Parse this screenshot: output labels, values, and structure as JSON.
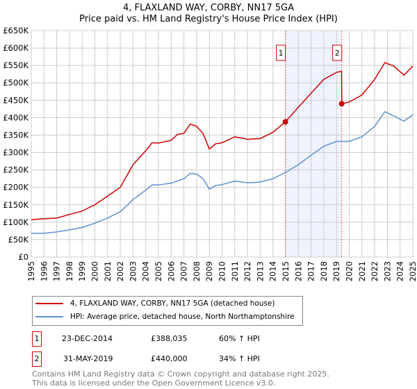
{
  "title": "4, FLAXLAND WAY, CORBY, NN17 5GA",
  "subtitle": "Price paid vs. HM Land Registry's House Price Index (HPI)",
  "chart_data": {
    "type": "line",
    "title": "4, FLAXLAND WAY, CORBY, NN17 5GA",
    "subtitle": "Price paid vs. HM Land Registry's House Price Index (HPI)",
    "xlim": [
      1995,
      2025
    ],
    "ylim": [
      0,
      650000
    ],
    "x_ticks": [
      "1995",
      "1996",
      "1997",
      "1998",
      "1999",
      "2000",
      "2001",
      "2002",
      "2003",
      "2004",
      "2005",
      "2006",
      "2007",
      "2008",
      "2009",
      "2010",
      "2011",
      "2012",
      "2013",
      "2014",
      "2015",
      "2016",
      "2017",
      "2018",
      "2019",
      "2020",
      "2021",
      "2022",
      "2023",
      "2024",
      "2025"
    ],
    "y_ticks": [
      {
        "v": 0,
        "l": "£0"
      },
      {
        "v": 50000,
        "l": "£50K"
      },
      {
        "v": 100000,
        "l": "£100K"
      },
      {
        "v": 150000,
        "l": "£150K"
      },
      {
        "v": 200000,
        "l": "£200K"
      },
      {
        "v": 250000,
        "l": "£250K"
      },
      {
        "v": 300000,
        "l": "£300K"
      },
      {
        "v": 350000,
        "l": "£350K"
      },
      {
        "v": 400000,
        "l": "£400K"
      },
      {
        "v": 450000,
        "l": "£450K"
      },
      {
        "v": 500000,
        "l": "£500K"
      },
      {
        "v": 550000,
        "l": "£550K"
      },
      {
        "v": 600000,
        "l": "£600K"
      },
      {
        "v": 650000,
        "l": "£650K"
      }
    ],
    "grid": true,
    "series": [
      {
        "name": "4, FLAXLAND WAY, CORBY, NN17 5GA (detached house)",
        "color": "#cc0000",
        "x": [
          1995,
          1996,
          1997,
          1998,
          1999,
          2000,
          2001,
          2002,
          2003,
          2004,
          2004.5,
          2005,
          2006,
          2006.5,
          2007,
          2007.5,
          2008,
          2008.5,
          2009,
          2009.5,
          2010,
          2011,
          2012,
          2013,
          2014,
          2014.98,
          2016,
          2017,
          2018,
          2019,
          2019.4,
          2019.42,
          2020,
          2021,
          2022,
          2022.8,
          2023.5,
          2024.3,
          2025
        ],
        "y": [
          107000,
          110000,
          112000,
          122000,
          132000,
          150000,
          175000,
          200000,
          265000,
          305000,
          328000,
          327000,
          335000,
          352000,
          355000,
          382000,
          375000,
          355000,
          310000,
          325000,
          328000,
          345000,
          338000,
          340000,
          358000,
          388035,
          430000,
          470000,
          510000,
          530000,
          533000,
          440000,
          445000,
          465000,
          510000,
          558000,
          548000,
          522000,
          548000
        ]
      },
      {
        "name": "HPI: Average price, detached house, North Northamptonshire",
        "color": "#5b8fd0",
        "x": [
          1995,
          1996,
          1997,
          1998,
          1999,
          2000,
          2001,
          2002,
          2003,
          2004,
          2004.5,
          2005,
          2006,
          2007,
          2007.5,
          2008,
          2008.5,
          2009,
          2009.5,
          2010,
          2011,
          2012,
          2013,
          2014,
          2015,
          2016,
          2017,
          2018,
          2019,
          2020,
          2021,
          2022,
          2022.8,
          2023.5,
          2024.3,
          2025
        ],
        "y": [
          68000,
          68000,
          72000,
          78000,
          85000,
          97000,
          112000,
          130000,
          165000,
          192000,
          207000,
          207000,
          212000,
          225000,
          240000,
          238000,
          225000,
          195000,
          205000,
          208000,
          218000,
          213000,
          215000,
          225000,
          243000,
          265000,
          292000,
          318000,
          332000,
          332000,
          345000,
          375000,
          417000,
          405000,
          390000,
          408000
        ]
      }
    ],
    "annotations": [
      {
        "label": "1",
        "x": 2014.98,
        "y": 388035
      },
      {
        "label": "2",
        "x": 2019.41,
        "y": 440000
      }
    ]
  },
  "sales": [
    {
      "num": "1",
      "date": "23-DEC-2014",
      "price": "£388,035",
      "hpi": "60% ↑ HPI"
    },
    {
      "num": "2",
      "date": "31-MAY-2019",
      "price": "£440,000",
      "hpi": "34% ↑ HPI"
    }
  ],
  "footer": [
    "Contains HM Land Registry data © Crown copyright and database right 2025.",
    "This data is licensed under the Open Government Licence v3.0."
  ]
}
